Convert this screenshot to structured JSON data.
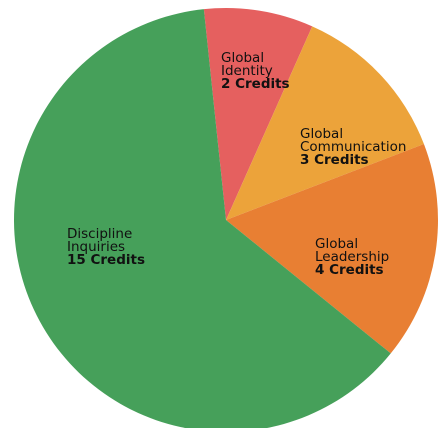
{
  "chart_data": {
    "type": "pie",
    "categories": [
      "Global Identity",
      "Global Communication",
      "Global Leadership",
      "Discipline Inquiries"
    ],
    "values": [
      2,
      3,
      4,
      15
    ],
    "value_labels": [
      "2 Credits",
      "3 Credits",
      "4 Credits",
      "15 Credits"
    ],
    "colors": [
      "#e5605f",
      "#eca33a",
      "#e87f33",
      "#46a05a"
    ]
  }
}
